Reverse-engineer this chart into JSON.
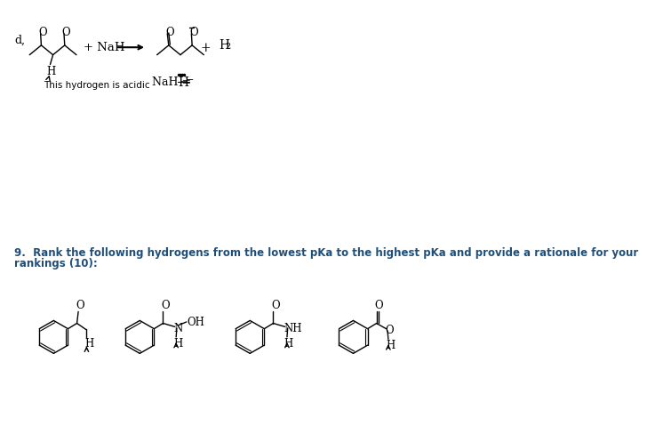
{
  "background_color": "#ffffff",
  "text_color": "#000000",
  "blue_text_color": "#1f4e79",
  "label_d": "d,",
  "label_NaH_left": "+ NaH",
  "label_plus_right": "+",
  "label_H2": "H",
  "label_H2_sub": "2",
  "label_this_hydrogen": "This hydrogen is acidic",
  "question_line1": "9.  Rank the following hydrogens from the lowest pKa to the highest pKa and provide a rationale for your",
  "question_line2": "rankings (10):"
}
